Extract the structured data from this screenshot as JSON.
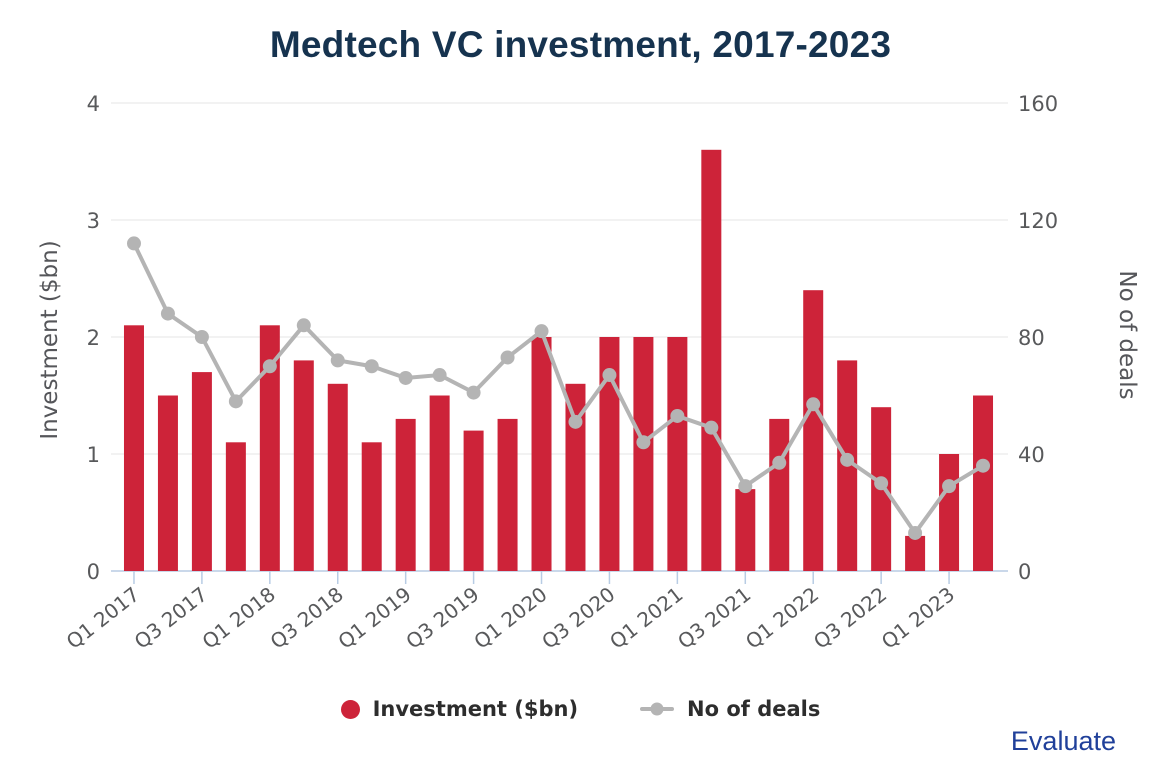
{
  "title": "Medtech VC investment, 2017-2023",
  "branding": {
    "label": "Evaluate"
  },
  "colors": {
    "title": "#16334f",
    "bar": "#cd2339",
    "line": "#b4b4b4",
    "brand_blue": "#20409a",
    "axis_text": "#58595b",
    "gridline": "#e6e6e6",
    "axis_line": "#b8cce4"
  },
  "legend": [
    {
      "label": "Investment ($bn)",
      "color": "#cd2339",
      "marker": "circle"
    },
    {
      "label": "No of deals",
      "color": "#b4b4b4",
      "marker": "line-dot"
    }
  ],
  "chart_data": {
    "type": "combo_bar_line",
    "title": "Medtech VC investment, 2017-2023",
    "categories": [
      "Q1 2017",
      "Q2 2017",
      "Q3 2017",
      "Q4 2017",
      "Q1 2018",
      "Q2 2018",
      "Q3 2018",
      "Q4 2018",
      "Q1 2019",
      "Q2 2019",
      "Q3 2019",
      "Q4 2019",
      "Q1 2020",
      "Q2 2020",
      "Q3 2020",
      "Q4 2020",
      "Q1 2021",
      "Q2 2021",
      "Q3 2021",
      "Q4 2021",
      "Q1 2022",
      "Q2 2022",
      "Q3 2022",
      "Q4 2022",
      "Q1 2023",
      "Q2 2023"
    ],
    "x_tick_labels": [
      "Q1 2017",
      "Q3 2017",
      "Q1 2018",
      "Q3 2018",
      "Q1 2019",
      "Q3 2019",
      "Q1 2020",
      "Q3 2020",
      "Q1 2021",
      "Q3 2021",
      "Q1 2022",
      "Q3 2022",
      "Q1 2023"
    ],
    "series": [
      {
        "name": "Investment ($bn)",
        "type": "bar",
        "axis": "left",
        "color": "#cd2339",
        "values": [
          2.1,
          1.5,
          1.7,
          1.1,
          2.1,
          1.8,
          1.6,
          1.1,
          1.3,
          1.5,
          1.2,
          1.3,
          2.0,
          1.6,
          2.0,
          2.0,
          2.0,
          3.6,
          0.7,
          1.3,
          2.4,
          1.8,
          1.4,
          0.3,
          1.0,
          1.5
        ]
      },
      {
        "name": "No of deals",
        "type": "line",
        "axis": "right",
        "color": "#b4b4b4",
        "values": [
          112,
          88,
          80,
          58,
          70,
          84,
          72,
          70,
          66,
          67,
          61,
          73,
          82,
          51,
          67,
          44,
          53,
          49,
          29,
          37,
          57,
          38,
          30,
          13,
          29,
          36
        ]
      }
    ],
    "left_axis": {
      "title": "Investment ($bn)",
      "min": 0,
      "max": 4,
      "ticks": [
        0,
        1,
        2,
        3,
        4
      ]
    },
    "right_axis": {
      "title": "No of deals",
      "min": 0,
      "max": 160,
      "ticks": [
        0,
        40,
        80,
        120,
        160
      ]
    },
    "grid": true,
    "legend_position": "bottom",
    "x_labels_rotation_deg": -38
  }
}
